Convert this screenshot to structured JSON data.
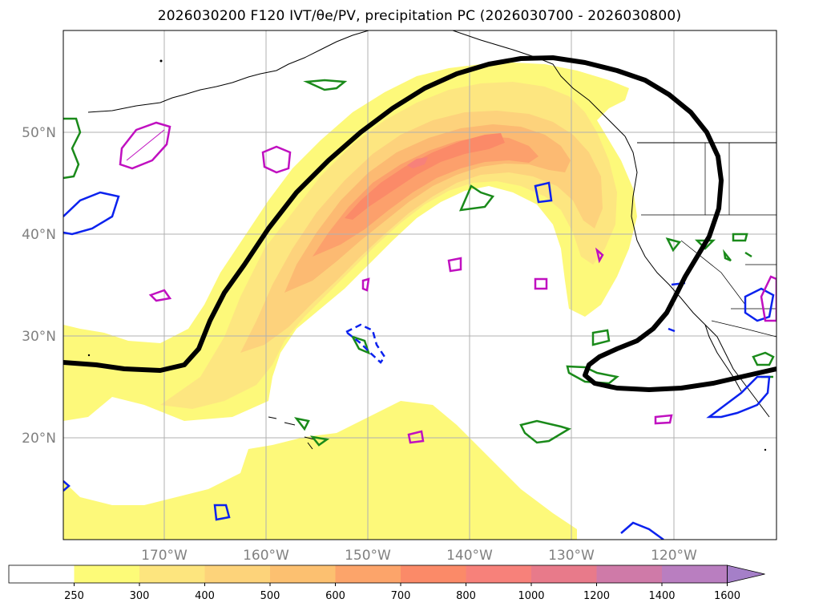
{
  "title": "2026030200 F120 IVT/θe/PV, precipitation PC (2026030700 - 2026030800)",
  "map": {
    "lat_labels": [
      "50°N",
      "40°N",
      "30°N",
      "20°N"
    ],
    "lon_labels": [
      "170°W",
      "160°W",
      "150°W",
      "140°W",
      "130°W",
      "120°W"
    ],
    "colors": {
      "ivt_250": "#fdf97a",
      "ivt_300": "#fde680",
      "ivt_400": "#fdd27c",
      "ivt_500": "#fcba72",
      "ivt_600": "#fca06c",
      "ivt_700": "#fb8a68",
      "theta_e_contour": "#000000",
      "pv_green": "#1a8a1a",
      "pv_blue": "#0b22ee",
      "pv_magenta": "#c010c0",
      "coastline": "#000000"
    }
  },
  "colorbar": {
    "ticks": [
      "250",
      "300",
      "400",
      "500",
      "600",
      "700",
      "800",
      "1000",
      "1200",
      "1400",
      "1600"
    ],
    "colors": [
      "#ffffff",
      "#fdfb78",
      "#fde57e",
      "#fdd37a",
      "#fcc070",
      "#fca46a",
      "#fb8a68",
      "#f7817a",
      "#e87a8a",
      "#cf7aa8",
      "#b97ec0",
      "#a57fc8"
    ]
  }
}
